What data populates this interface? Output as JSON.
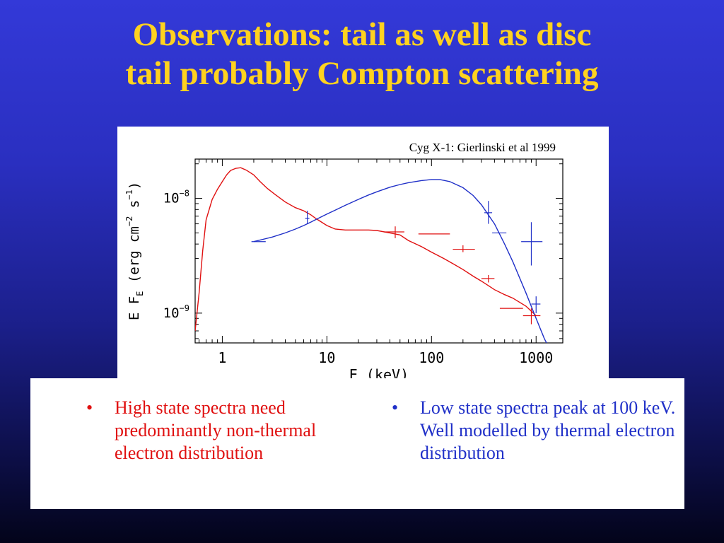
{
  "slide": {
    "title_line1": "Observations: tail as well as disc",
    "title_line2": "tail probably Compton scattering",
    "bullets": [
      {
        "marker": "•",
        "text": "High state spectra need predominantly non-thermal electron distribution",
        "color": "#e01010"
      },
      {
        "marker": "•",
        "text": "Low state spectra peak at 100 keV. Well modelled by thermal electron distribution",
        "color": "#2030c8"
      }
    ],
    "colors": {
      "title": "#ffd21f",
      "background_top": "#3339d8",
      "background_bottom": "#03041a"
    }
  },
  "chart_data": {
    "type": "line",
    "title": "Cyg X-1: Gierlinski et al 1999",
    "xlabel": "E (keV)",
    "ylabel": "E F_E (erg cm^-2 s^-1)",
    "ylabel_parts": {
      "main": "E F",
      "sub": "E",
      "units": " (erg cm",
      "exp1": "−2",
      "mid": " s",
      "exp2": "−1",
      "close": ")"
    },
    "xscale": "log",
    "yscale": "log",
    "xlim": [
      0.55,
      1800
    ],
    "ylim": [
      5.5e-10,
      2.2e-08
    ],
    "x_ticks": [
      {
        "value": 1,
        "label": "1"
      },
      {
        "value": 10,
        "label": "10"
      },
      {
        "value": 100,
        "label": "100"
      },
      {
        "value": 1000,
        "label": "1000"
      }
    ],
    "y_ticks": [
      {
        "value": 1e-09,
        "label_base": "10",
        "label_exp": "−9"
      },
      {
        "value": 1e-08,
        "label_base": "10",
        "label_exp": "−8"
      }
    ],
    "grid": false,
    "series": [
      {
        "key": "high",
        "color": "#e01010",
        "x": [
          0.55,
          0.6,
          0.65,
          0.7,
          0.8,
          0.9,
          1.0,
          1.1,
          1.2,
          1.35,
          1.5,
          1.7,
          2.0,
          2.3,
          2.7,
          3.2,
          4.0,
          5.0,
          6.0,
          7.0,
          8.0,
          10,
          12,
          15,
          20,
          25,
          30,
          40,
          50,
          60,
          80,
          100,
          130,
          160,
          200,
          250,
          300,
          400,
          500,
          600,
          800,
          1000
        ],
        "y": [
          7e-10,
          1.5e-09,
          3.5e-09,
          6.5e-09,
          9.8e-09,
          1.2e-08,
          1.4e-08,
          1.6e-08,
          1.75e-08,
          1.83e-08,
          1.85e-08,
          1.76e-08,
          1.6e-08,
          1.4e-08,
          1.22e-08,
          1.08e-08,
          9.3e-09,
          8.3e-09,
          7.8e-09,
          7.2e-09,
          6.6e-09,
          5.8e-09,
          5.4e-09,
          5.3e-09,
          5.3e-09,
          5.3e-09,
          5.25e-09,
          5e-09,
          4.8e-09,
          4.3e-09,
          3.8e-09,
          3.4e-09,
          3e-09,
          2.7e-09,
          2.4e-09,
          2.1e-09,
          1.9e-09,
          1.6e-09,
          1.45e-09,
          1.35e-09,
          1.15e-09,
          9.5e-10
        ]
      },
      {
        "key": "low",
        "color": "#2030c8",
        "x": [
          2,
          3,
          4,
          5,
          6,
          7,
          8,
          10,
          12,
          15,
          20,
          25,
          30,
          40,
          50,
          60,
          80,
          100,
          120,
          150,
          200,
          250,
          300,
          400,
          500,
          600,
          800,
          1000,
          1200,
          1500
        ],
        "y": [
          4.2e-09,
          4.6e-09,
          5e-09,
          5.4e-09,
          5.8e-09,
          6.2e-09,
          6.6e-09,
          7.3e-09,
          7.9e-09,
          8.7e-09,
          9.8e-09,
          1.07e-08,
          1.14e-08,
          1.25e-08,
          1.32e-08,
          1.37e-08,
          1.43e-08,
          1.46e-08,
          1.46e-08,
          1.4e-08,
          1.24e-08,
          1.06e-08,
          8.8e-09,
          6e-09,
          4e-09,
          2.8e-09,
          1.5e-09,
          9e-10,
          6e-10,
          4e-10
        ]
      }
    ],
    "error_bars": [
      {
        "series": "high",
        "x": 45,
        "y": 5.1e-09,
        "xlo": 35,
        "xhi": 55,
        "ylo": 4.5e-09,
        "yhi": 5.7e-09
      },
      {
        "series": "high",
        "x": 100,
        "y": 4.9e-09,
        "xlo": 75,
        "xhi": 150,
        "ylo": 4.9e-09,
        "yhi": 4.9e-09
      },
      {
        "series": "high",
        "x": 200,
        "y": 3.6e-09,
        "xlo": 160,
        "xhi": 260,
        "ylo": 3.4e-09,
        "yhi": 3.9e-09
      },
      {
        "series": "high",
        "x": 350,
        "y": 2e-09,
        "xlo": 300,
        "xhi": 400,
        "ylo": 1.85e-09,
        "yhi": 2.15e-09
      },
      {
        "series": "high",
        "x": 600,
        "y": 1.1e-09,
        "xlo": 450,
        "xhi": 750,
        "ylo": 1.1e-09,
        "yhi": 1.1e-09
      },
      {
        "series": "high",
        "x": 900,
        "y": 9.5e-10,
        "xlo": 750,
        "xhi": 1100,
        "ylo": 8e-10,
        "yhi": 1.1e-09
      },
      {
        "series": "low",
        "x": 2.2,
        "y": 4.2e-09,
        "xlo": 1.9,
        "xhi": 2.6,
        "ylo": 4.2e-09,
        "yhi": 4.2e-09
      },
      {
        "series": "low",
        "x": 6.5,
        "y": 6.7e-09,
        "xlo": 6.2,
        "xhi": 6.8,
        "ylo": 6e-09,
        "yhi": 7.8e-09
      },
      {
        "series": "low",
        "x": 350,
        "y": 7.5e-09,
        "xlo": 320,
        "xhi": 380,
        "ylo": 6e-09,
        "yhi": 9.5e-09
      },
      {
        "series": "low",
        "x": 450,
        "y": 5e-09,
        "xlo": 380,
        "xhi": 520,
        "ylo": 5e-09,
        "yhi": 5e-09
      },
      {
        "series": "low",
        "x": 900,
        "y": 4.2e-09,
        "xlo": 720,
        "xhi": 1150,
        "ylo": 2.6e-09,
        "yhi": 6.2e-09
      },
      {
        "series": "low",
        "x": 1000,
        "y": 1.2e-09,
        "xlo": 900,
        "xhi": 1100,
        "ylo": 1e-09,
        "yhi": 1.4e-09
      }
    ]
  }
}
